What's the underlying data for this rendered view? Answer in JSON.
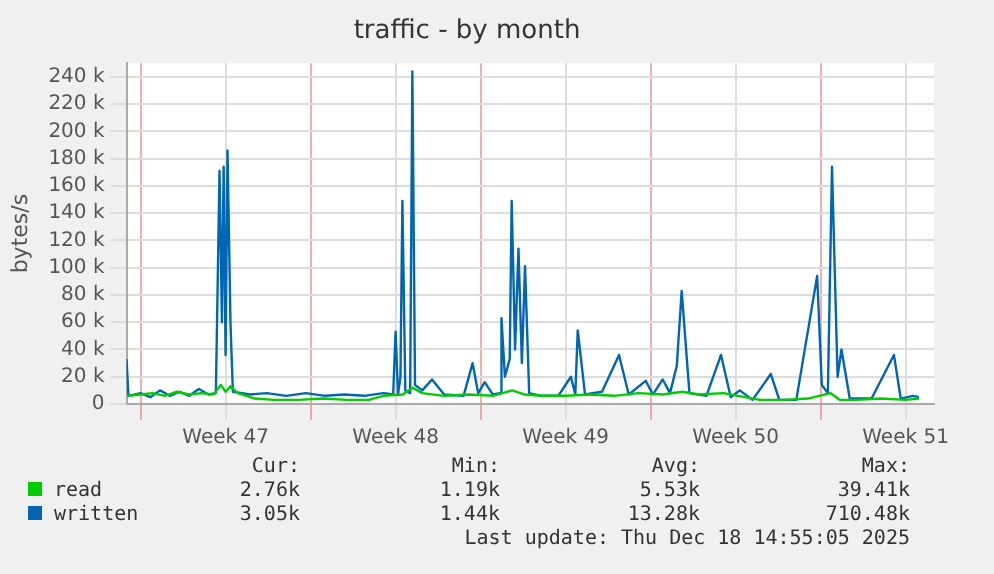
{
  "chart_data": {
    "type": "line",
    "title": "traffic - by month",
    "ylabel": "bytes/s",
    "xlim": [
      "2025-11-15T10:05",
      "2025-12-18T16:05"
    ],
    "xticks": [
      {
        "value": "2025-11-16",
        "label": null
      },
      {
        "value": "2025-11-19T12:00",
        "label": "Week 47"
      },
      {
        "value": "2025-11-23",
        "label": null
      },
      {
        "value": "2025-11-26T12:00",
        "label": "Week 48"
      },
      {
        "value": "2025-11-30",
        "label": null
      },
      {
        "value": "2025-12-03T12:00",
        "label": "Week 49"
      },
      {
        "value": "2025-12-07",
        "label": null
      },
      {
        "value": "2025-12-10T12:00",
        "label": "Week 50"
      },
      {
        "value": "2025-12-14",
        "label": null
      },
      {
        "value": "2025-12-17T12:00",
        "label": "Week 51"
      }
    ],
    "ylim": [
      0,
      250000
    ],
    "yticks": [
      {
        "value": 0,
        "label": "0"
      },
      {
        "value": 20000,
        "label": "20 k"
      },
      {
        "value": 40000,
        "label": "40 k"
      },
      {
        "value": 60000,
        "label": "60 k"
      },
      {
        "value": 80000,
        "label": "80 k"
      },
      {
        "value": 100000,
        "label": "100 k"
      },
      {
        "value": 120000,
        "label": "120 k"
      },
      {
        "value": 140000,
        "label": "140 k"
      },
      {
        "value": 160000,
        "label": "160 k"
      },
      {
        "value": 180000,
        "label": "180 k"
      },
      {
        "value": 200000,
        "label": "200 k"
      },
      {
        "value": 220000,
        "label": "220 k"
      },
      {
        "value": 240000,
        "label": "240 k"
      }
    ],
    "grid": true,
    "legend": "bottom",
    "marker": "none",
    "line_style": "solid",
    "series": [
      {
        "name": "read",
        "color": "#00cc00",
        "x": [
          "2025-11-15T10:48",
          "2025-11-16T00:00",
          "2025-11-16T12:00",
          "2025-11-17T00:00",
          "2025-11-17T12:00",
          "2025-11-18T00:00",
          "2025-11-18T12:00",
          "2025-11-19T00:00",
          "2025-11-19T07:12",
          "2025-11-19T12:00",
          "2025-11-19T16:48",
          "2025-11-20T00:00",
          "2025-11-20T16:48",
          "2025-11-21T12:00",
          "2025-11-22T12:00",
          "2025-11-23T12:00",
          "2025-11-24T12:00",
          "2025-11-25T09:36",
          "2025-11-26T00:00",
          "2025-11-26T19:12",
          "2025-11-27T04:48",
          "2025-11-27T14:24",
          "2025-11-28T12:00",
          "2025-11-29T12:00",
          "2025-11-30T12:00",
          "2025-12-01T07:12",
          "2025-12-01T19:12",
          "2025-12-02T12:00",
          "2025-12-03T12:00",
          "2025-12-04T12:00",
          "2025-12-05T12:00",
          "2025-12-06T12:00",
          "2025-12-07T12:00",
          "2025-12-08T07:12",
          "2025-12-09T00:00",
          "2025-12-10T00:00",
          "2025-12-10T14:24",
          "2025-12-11T12:00",
          "2025-12-12T12:00",
          "2025-12-13T12:00",
          "2025-12-14T09:36",
          "2025-12-14T19:12",
          "2025-12-15T12:00",
          "2025-12-16T12:00",
          "2025-12-17T12:00",
          "2025-12-18T01:12"
        ],
        "values": [
          6000,
          7000,
          8000,
          6000,
          9000,
          7000,
          8000,
          7000,
          14000,
          9000,
          13000,
          8000,
          4000,
          3000,
          3000,
          4000,
          3000,
          3000,
          6000,
          7000,
          12000,
          8000,
          6000,
          7000,
          6000,
          10000,
          7000,
          6000,
          6000,
          7000,
          6000,
          8000,
          7000,
          9000,
          7000,
          8000,
          6000,
          3000,
          3000,
          4000,
          8000,
          3000,
          3000,
          4000,
          3000,
          4000
        ]
      },
      {
        "name": "written",
        "color": "#0066b3",
        "x": [
          "2025-11-15T10:05",
          "2025-11-15T12:00",
          "2025-11-16T00:00",
          "2025-11-16T09:36",
          "2025-11-16T19:12",
          "2025-11-17T04:48",
          "2025-11-17T14:24",
          "2025-11-18T00:00",
          "2025-11-18T09:36",
          "2025-11-18T19:12",
          "2025-11-19T02:24",
          "2025-11-19T06:00",
          "2025-11-19T08:24",
          "2025-11-19T10:05",
          "2025-11-19T12:00",
          "2025-11-19T13:55",
          "2025-11-19T16:48",
          "2025-11-19T19:12",
          "2025-11-20T12:00",
          "2025-11-21T04:48",
          "2025-11-22T00:00",
          "2025-11-22T19:12",
          "2025-11-23T14:24",
          "2025-11-24T09:36",
          "2025-11-25T04:48",
          "2025-11-26T00:00",
          "2025-11-26T09:36",
          "2025-11-26T12:00",
          "2025-11-26T14:24",
          "2025-11-26T16:48",
          "2025-11-26T18:43",
          "2025-11-26T21:36",
          "2025-11-27T02:24",
          "2025-11-27T04:34",
          "2025-11-27T07:12",
          "2025-11-27T14:24",
          "2025-11-28T00:00",
          "2025-11-28T12:00",
          "2025-11-29T07:12",
          "2025-11-29T16:05",
          "2025-11-29T21:36",
          "2025-11-30T04:05",
          "2025-11-30T12:00",
          "2025-11-30T19:12",
          "2025-11-30T20:38",
          "2025-12-01T00:00",
          "2025-12-01T04:48",
          "2025-12-01T06:43",
          "2025-12-01T10:05",
          "2025-12-01T13:26",
          "2025-12-01T16:48",
          "2025-12-01T19:55",
          "2025-12-02T00:00",
          "2025-12-02T12:00",
          "2025-12-03T04:48",
          "2025-12-03T17:17",
          "2025-12-03T21:36",
          "2025-12-04T00:00",
          "2025-12-04T07:12",
          "2025-12-05T00:00",
          "2025-12-05T16:48",
          "2025-12-06T02:24",
          "2025-12-06T19:12",
          "2025-12-07T02:24",
          "2025-12-07T12:00",
          "2025-12-07T19:12",
          "2025-12-08T01:55",
          "2025-12-08T06:43",
          "2025-12-08T14:24",
          "2025-12-09T07:12",
          "2025-12-09T21:36",
          "2025-12-10T07:12",
          "2025-12-10T16:05",
          "2025-12-11T04:48",
          "2025-12-11T22:48",
          "2025-12-12T07:12",
          "2025-12-13T00:00",
          "2025-12-13T20:38",
          "2025-12-14T01:12",
          "2025-12-14T07:12",
          "2025-12-14T11:17",
          "2025-12-14T16:48",
          "2025-12-14T20:38",
          "2025-12-15T04:48",
          "2025-12-16T02:24",
          "2025-12-17T00:29",
          "2025-12-17T07:12",
          "2025-12-17T19:12",
          "2025-12-18T01:12"
        ],
        "values": [
          33000,
          6000,
          8000,
          5000,
          10000,
          6000,
          9000,
          6000,
          11000,
          7000,
          8000,
          171000,
          60000,
          174000,
          36000,
          186000,
          60000,
          9000,
          7000,
          8000,
          6000,
          8000,
          6000,
          7000,
          6000,
          8000,
          7000,
          53000,
          7000,
          20000,
          149000,
          10000,
          8000,
          244000,
          14000,
          10000,
          18000,
          7000,
          6000,
          30000,
          8000,
          16000,
          7000,
          8000,
          63000,
          20000,
          33000,
          149000,
          40000,
          114000,
          30000,
          101000,
          8000,
          6000,
          6000,
          20000,
          7000,
          54000,
          7000,
          9000,
          36000,
          7000,
          17000,
          7000,
          18000,
          8000,
          28000,
          83000,
          8000,
          6000,
          36000,
          5000,
          10000,
          3000,
          22000,
          3000,
          3000,
          94000,
          14000,
          8000,
          174000,
          20000,
          40000,
          4000,
          4000,
          36000,
          4000,
          6000,
          5000
        ]
      }
    ],
    "annotations": [
      "Cur:",
      "Min:",
      "Avg:",
      "Max:",
      "2.76k",
      "1.19k",
      "5.53k",
      "39.41k",
      "3.05k",
      "1.44k",
      "13.28k",
      "710.48k",
      "Last update: Thu Dec 18 14:55:05 2025"
    ]
  }
}
